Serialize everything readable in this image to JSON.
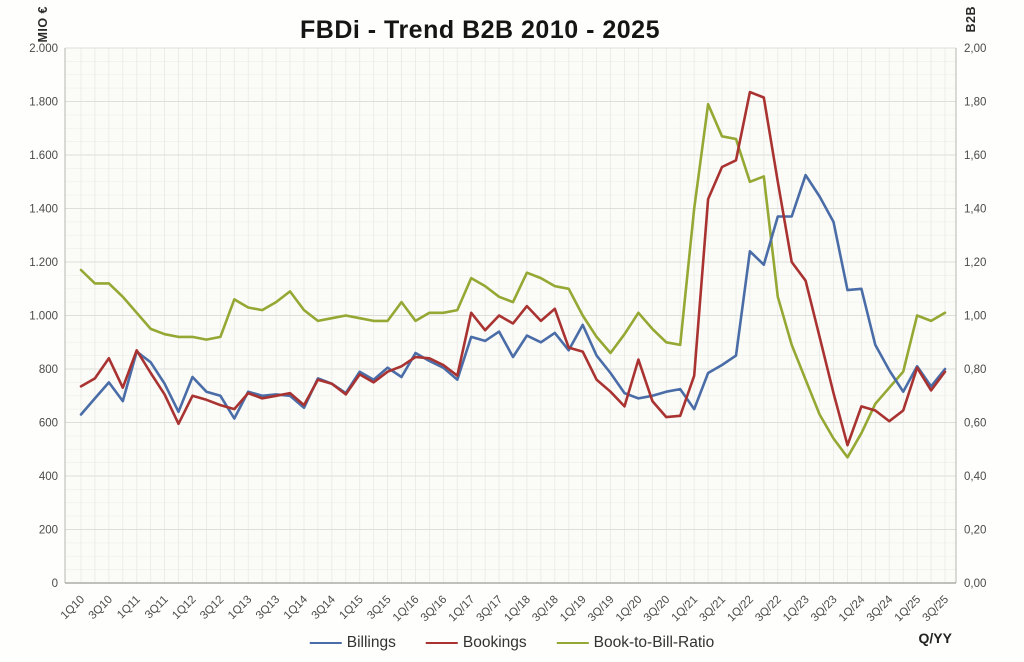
{
  "chart_data": {
    "type": "line",
    "title": "FBDi - Trend B2B 2010 - 2025",
    "grid": true,
    "legend_position": "bottom",
    "left_axis": {
      "unit": "MIO €",
      "min": 0,
      "max": 2000,
      "tick_step": 200,
      "tick_labels": [
        "0",
        "200",
        "400",
        "600",
        "800",
        "1.000",
        "1.200",
        "1.400",
        "1.600",
        "1.800",
        "2.000"
      ]
    },
    "right_axis": {
      "unit": "B2B",
      "min": 0,
      "max": 2,
      "tick_step": 0.2,
      "tick_labels": [
        "0,00",
        "0,20",
        "0,40",
        "0,60",
        "0,80",
        "1,00",
        "1,20",
        "1,40",
        "1,60",
        "1,80",
        "2,00"
      ]
    },
    "x_axis": {
      "unit": "Q/YY",
      "quarters": 63,
      "first_quarter": "1Q10",
      "last_quarter": "3Q25",
      "tick_labels": [
        "1Q10",
        "3Q10",
        "1Q11",
        "3Q11",
        "1Q12",
        "3Q12",
        "1Q13",
        "3Q13",
        "1Q14",
        "3Q14",
        "1Q15",
        "3Q15",
        "1Q/16",
        "3Q/16",
        "1Q/17",
        "3Q/17",
        "1Q/18",
        "3Q/18",
        "1Q/19",
        "3Q/19",
        "1Q/20",
        "3Q/20",
        "1Q/21",
        "3Q/21",
        "1Q/22",
        "3Q/22",
        "1Q/23",
        "3Q/23",
        "1Q/24",
        "3Q/24",
        "1Q/25",
        "3Q/25"
      ]
    },
    "series": [
      {
        "name": "Billings",
        "axis": "left",
        "color": "#4a6da7",
        "values": [
          630,
          690,
          750,
          680,
          865,
          825,
          745,
          640,
          770,
          715,
          700,
          615,
          715,
          700,
          705,
          700,
          655,
          765,
          745,
          710,
          790,
          760,
          805,
          770,
          860,
          830,
          805,
          760,
          920,
          905,
          940,
          845,
          925,
          900,
          935,
          870,
          965,
          850,
          785,
          710,
          690,
          700,
          715,
          725,
          650,
          785,
          815,
          850,
          1240,
          1190,
          1370,
          1370,
          1525,
          1445,
          1350,
          1095,
          1100,
          890,
          795,
          715,
          810,
          735,
          800
        ]
      },
      {
        "name": "Bookings",
        "axis": "left",
        "color": "#a93331",
        "values": [
          735,
          765,
          840,
          730,
          870,
          785,
          705,
          595,
          700,
          685,
          665,
          650,
          710,
          690,
          700,
          710,
          665,
          760,
          745,
          705,
          780,
          750,
          790,
          810,
          845,
          840,
          815,
          775,
          1010,
          945,
          1000,
          970,
          1035,
          980,
          1025,
          880,
          865,
          760,
          715,
          660,
          835,
          680,
          620,
          625,
          775,
          1435,
          1555,
          1580,
          1835,
          1815,
          1500,
          1200,
          1130,
          920,
          710,
          515,
          660,
          645,
          605,
          645,
          805,
          720,
          790
        ]
      },
      {
        "name": "Book-to-Bill-Ratio",
        "axis": "right",
        "color": "#95a833",
        "values": [
          1.17,
          1.12,
          1.12,
          1.07,
          1.01,
          0.95,
          0.93,
          0.92,
          0.92,
          0.91,
          0.92,
          1.06,
          1.03,
          1.02,
          1.05,
          1.09,
          1.02,
          0.98,
          0.99,
          1.0,
          0.99,
          0.98,
          0.98,
          1.05,
          0.98,
          1.01,
          1.01,
          1.02,
          1.14,
          1.11,
          1.07,
          1.05,
          1.16,
          1.14,
          1.11,
          1.1,
          1.0,
          0.92,
          0.86,
          0.93,
          1.01,
          0.95,
          0.9,
          0.89,
          1.4,
          1.79,
          1.67,
          1.66,
          1.5,
          1.52,
          1.07,
          0.89,
          0.76,
          0.63,
          0.54,
          0.47,
          0.56,
          0.67,
          0.73,
          0.79,
          1.0,
          0.98,
          1.01
        ]
      }
    ],
    "colors": {
      "grid_major": "#dededa",
      "grid_minor": "#f0f0ec",
      "grid_vertical": "#e9e9e5",
      "axis_border": "#b5b5b0",
      "axis_bottom": "#9b9b97",
      "tick_text": "#4a4a4a",
      "plot_background": "#fbfbf8"
    }
  }
}
